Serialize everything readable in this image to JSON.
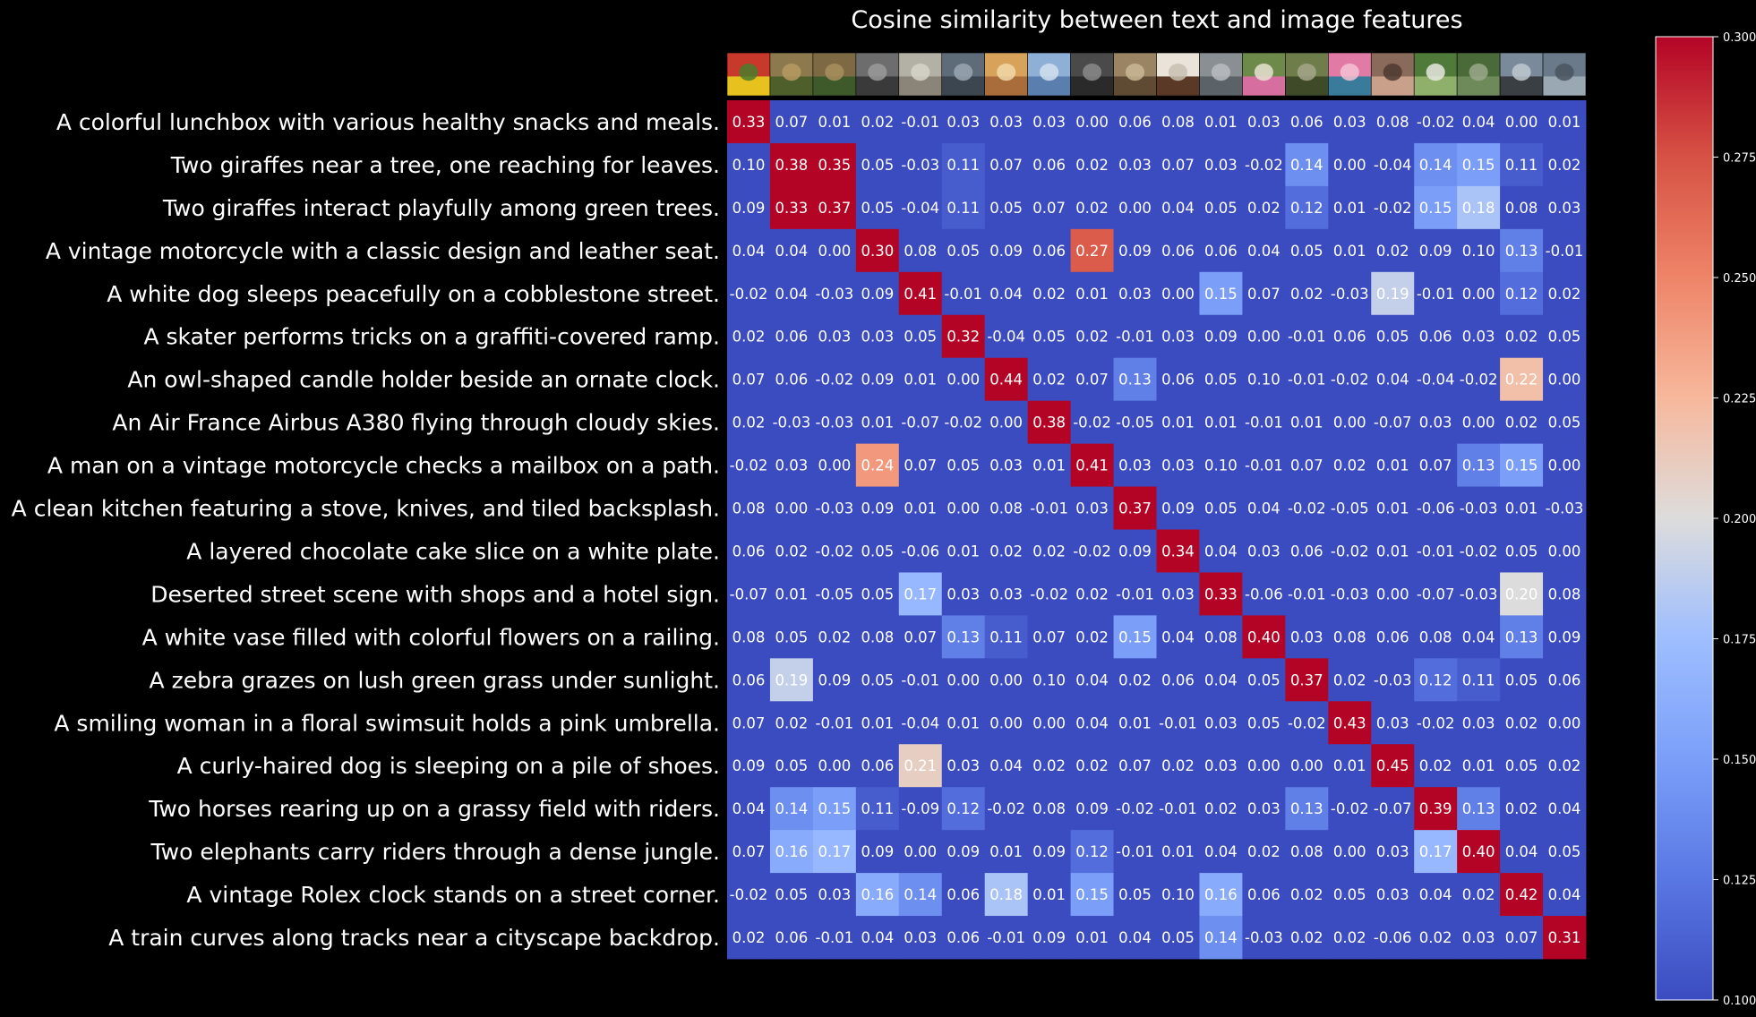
{
  "chart_data": {
    "type": "heatmap",
    "title": "Cosine similarity between text and image features",
    "row_labels": [
      "A colorful lunchbox with various healthy snacks and meals.",
      "Two giraffes near a tree, one reaching for leaves.",
      "Two giraffes interact playfully among green trees.",
      "A vintage motorcycle with a classic design and leather seat.",
      "A white dog sleeps peacefully on a cobblestone street.",
      "A skater performs tricks on a graffiti-covered ramp.",
      "An owl-shaped candle holder beside an ornate clock.",
      "An Air France Airbus A380 flying through cloudy skies.",
      "A man on a vintage motorcycle checks a mailbox on a path.",
      "A clean kitchen featuring a stove, knives, and tiled backsplash.",
      "A layered chocolate cake slice on a white plate.",
      "Deserted street scene with shops and a hotel sign.",
      "A white vase filled with colorful flowers on a railing.",
      "A zebra grazes on lush green grass under sunlight.",
      "A smiling woman in a floral swimsuit holds a pink umbrella.",
      "A curly-haired dog is sleeping on a pile of shoes.",
      "Two horses rearing up on a grassy field with riders.",
      "Two elephants carry riders through a dense jungle.",
      "A vintage Rolex clock stands on a street corner.",
      "A train curves along tracks near a cityscape backdrop."
    ],
    "column_thumbnails": [
      {
        "colors": [
          "#c8382b",
          "#e7c21e",
          "#4a7d2a"
        ]
      },
      {
        "colors": [
          "#8c7a4e",
          "#4f5f2c",
          "#b79a62"
        ]
      },
      {
        "colors": [
          "#7d6a44",
          "#3f5a2a",
          "#a88e5d"
        ]
      },
      {
        "colors": [
          "#6d6d6d",
          "#3a3a3a",
          "#9a9a9a"
        ]
      },
      {
        "colors": [
          "#b3b0a6",
          "#8b8579",
          "#d6d3c9"
        ]
      },
      {
        "colors": [
          "#5e6c7a",
          "#3b4650",
          "#9aa6b0"
        ]
      },
      {
        "colors": [
          "#d9a25a",
          "#a86d3a",
          "#f0d8a8"
        ]
      },
      {
        "colors": [
          "#8fb0d6",
          "#5a7fae",
          "#d2e0ef"
        ]
      },
      {
        "colors": [
          "#4a4a4a",
          "#2a2a2a",
          "#8a8a8a"
        ]
      },
      {
        "colors": [
          "#9b8464",
          "#5f4b34",
          "#c9b694"
        ]
      },
      {
        "colors": [
          "#e9e3da",
          "#5a3a26",
          "#c8bfb0"
        ]
      },
      {
        "colors": [
          "#8a8f94",
          "#5b6268",
          "#b8bcbf"
        ]
      },
      {
        "colors": [
          "#6e8a4a",
          "#d66fa0",
          "#e8e0d0"
        ]
      },
      {
        "colors": [
          "#6e7d4a",
          "#3e4a28",
          "#a5a58a"
        ]
      },
      {
        "colors": [
          "#e27aa6",
          "#3a7a9a",
          "#f4c2d4"
        ]
      },
      {
        "colors": [
          "#8a6a5a",
          "#c9a08a",
          "#4e3a30"
        ]
      },
      {
        "colors": [
          "#4f7a3a",
          "#8fb06a",
          "#e8e8e0"
        ]
      },
      {
        "colors": [
          "#4a6a3a",
          "#6e8a5a",
          "#9aa88a"
        ]
      },
      {
        "colors": [
          "#7a8a9a",
          "#3a3f44",
          "#bfc8d0"
        ]
      },
      {
        "colors": [
          "#6a7a8a",
          "#9aa8b4",
          "#4a5560"
        ]
      }
    ],
    "values": [
      [
        0.33,
        0.07,
        0.01,
        0.02,
        -0.01,
        0.03,
        0.03,
        0.03,
        -0.0,
        0.06,
        0.08,
        0.01,
        0.03,
        0.06,
        0.03,
        0.08,
        -0.02,
        0.04,
        0.0,
        0.01
      ],
      [
        0.1,
        0.38,
        0.35,
        0.05,
        -0.03,
        0.11,
        0.07,
        0.06,
        0.02,
        0.03,
        0.07,
        0.03,
        -0.02,
        0.14,
        -0.0,
        -0.04,
        0.14,
        0.15,
        0.11,
        0.02
      ],
      [
        0.09,
        0.33,
        0.37,
        0.05,
        -0.04,
        0.11,
        0.05,
        0.07,
        0.02,
        -0.0,
        0.04,
        0.05,
        0.02,
        0.12,
        0.01,
        -0.02,
        0.15,
        0.18,
        0.08,
        0.03
      ],
      [
        0.04,
        0.04,
        -0.0,
        0.3,
        0.08,
        0.05,
        0.09,
        0.06,
        0.27,
        0.09,
        0.06,
        0.06,
        0.04,
        0.05,
        0.01,
        0.02,
        0.09,
        0.1,
        0.13,
        -0.01
      ],
      [
        -0.02,
        0.04,
        -0.03,
        0.09,
        0.41,
        -0.01,
        0.04,
        0.02,
        0.01,
        0.03,
        0.0,
        0.15,
        0.07,
        0.02,
        -0.03,
        0.19,
        -0.01,
        0.0,
        0.12,
        0.02
      ],
      [
        0.02,
        0.06,
        0.03,
        0.03,
        0.05,
        0.32,
        -0.04,
        0.05,
        0.02,
        -0.01,
        0.03,
        0.09,
        0.0,
        -0.01,
        0.06,
        0.05,
        0.06,
        0.03,
        0.02,
        0.05
      ],
      [
        0.07,
        0.06,
        -0.02,
        0.09,
        0.01,
        0.0,
        0.44,
        0.02,
        0.07,
        0.13,
        0.06,
        0.05,
        0.1,
        -0.01,
        -0.02,
        0.04,
        -0.04,
        -0.02,
        0.22,
        -0.0
      ],
      [
        0.02,
        -0.03,
        -0.03,
        0.01,
        -0.07,
        -0.02,
        0.0,
        0.38,
        -0.02,
        -0.05,
        0.01,
        0.01,
        -0.01,
        0.01,
        0.0,
        -0.07,
        0.03,
        0.0,
        0.02,
        0.05
      ],
      [
        -0.02,
        0.03,
        -0.0,
        0.24,
        0.07,
        0.05,
        0.03,
        0.01,
        0.41,
        0.03,
        0.03,
        0.1,
        -0.01,
        0.07,
        0.02,
        0.01,
        0.07,
        0.13,
        0.15,
        -0.0
      ],
      [
        0.08,
        0.0,
        -0.03,
        0.09,
        0.01,
        0.0,
        0.08,
        -0.01,
        0.03,
        0.37,
        0.09,
        0.05,
        0.04,
        -0.02,
        -0.05,
        0.01,
        -0.06,
        -0.03,
        0.01,
        -0.03
      ],
      [
        0.06,
        0.02,
        -0.02,
        0.05,
        -0.06,
        0.01,
        0.02,
        0.02,
        -0.02,
        0.09,
        0.34,
        0.04,
        0.03,
        0.06,
        -0.02,
        0.01,
        -0.01,
        -0.02,
        0.05,
        0.0
      ],
      [
        -0.07,
        0.01,
        -0.05,
        0.05,
        0.17,
        0.03,
        0.03,
        -0.02,
        0.02,
        -0.01,
        0.03,
        0.33,
        -0.06,
        -0.01,
        -0.03,
        0.0,
        -0.07,
        -0.03,
        0.2,
        0.08
      ],
      [
        0.08,
        0.05,
        0.02,
        0.08,
        0.07,
        0.13,
        0.11,
        0.07,
        0.02,
        0.15,
        0.04,
        0.08,
        0.4,
        0.03,
        0.08,
        0.06,
        0.08,
        0.04,
        0.13,
        0.09
      ],
      [
        0.06,
        0.19,
        0.09,
        0.05,
        -0.01,
        0.0,
        -0.0,
        0.1,
        0.04,
        0.02,
        0.06,
        0.04,
        0.05,
        0.37,
        0.02,
        -0.03,
        0.12,
        0.11,
        0.05,
        0.06
      ],
      [
        0.07,
        0.02,
        -0.01,
        0.01,
        -0.04,
        0.01,
        0.0,
        0.0,
        0.04,
        0.01,
        -0.01,
        0.03,
        0.05,
        -0.02,
        0.43,
        0.03,
        -0.02,
        0.03,
        0.02,
        -0.0
      ],
      [
        0.09,
        0.05,
        -0.0,
        0.06,
        0.21,
        0.03,
        0.04,
        0.02,
        0.02,
        0.07,
        0.02,
        0.03,
        0.0,
        -0.0,
        0.01,
        0.45,
        0.02,
        0.01,
        0.05,
        0.02
      ],
      [
        0.04,
        0.14,
        0.15,
        0.11,
        -0.09,
        0.12,
        -0.02,
        0.08,
        0.09,
        -0.02,
        -0.01,
        0.02,
        0.03,
        0.13,
        -0.02,
        -0.07,
        0.39,
        0.13,
        0.02,
        0.04
      ],
      [
        0.07,
        0.16,
        0.17,
        0.09,
        -0.0,
        0.09,
        0.01,
        0.09,
        0.12,
        -0.01,
        0.01,
        0.04,
        0.02,
        0.08,
        -0.0,
        0.03,
        0.17,
        0.4,
        0.04,
        0.05
      ],
      [
        -0.02,
        0.05,
        0.03,
        0.16,
        0.14,
        0.06,
        0.18,
        0.01,
        0.15,
        0.05,
        0.1,
        0.16,
        0.06,
        0.02,
        0.05,
        0.03,
        0.04,
        0.02,
        0.42,
        0.04
      ],
      [
        0.02,
        0.06,
        -0.01,
        0.04,
        0.03,
        0.06,
        -0.01,
        0.09,
        0.01,
        0.04,
        0.05,
        0.14,
        -0.03,
        0.02,
        0.02,
        -0.06,
        0.02,
        0.03,
        0.07,
        0.31
      ]
    ],
    "vmin": 0.1,
    "vmax": 0.3,
    "colormap": "coolwarm",
    "colorbar_ticks": [
      "0.100",
      "0.125",
      "0.150",
      "0.175",
      "0.200",
      "0.225",
      "0.250",
      "0.275",
      "0.300"
    ],
    "background_color": "#000000",
    "text_color": "#ffffff"
  }
}
